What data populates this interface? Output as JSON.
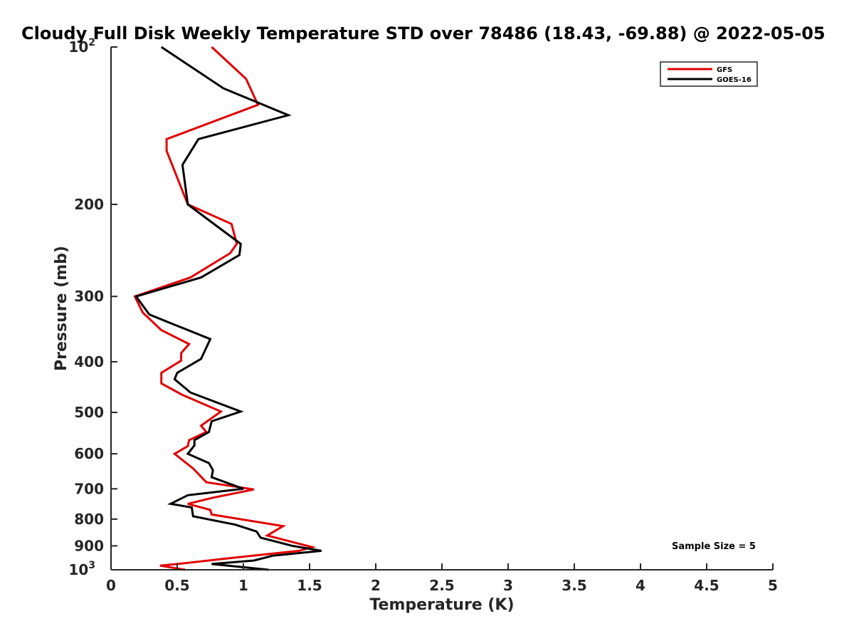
{
  "chart_data": {
    "type": "line",
    "title": "Cloudy Full Disk Weekly Temperature STD over 78486 (18.43, -69.88) @ 2022-05-05",
    "xlabel": "Temperature (K)",
    "ylabel": "Pressure (mb)",
    "xlim": [
      0,
      5
    ],
    "ylim": [
      100,
      1000
    ],
    "y_scale": "log",
    "y_reversed": true,
    "grid": false,
    "legend_position": "top-right",
    "x_ticks": [
      {
        "value": 0,
        "label": "0"
      },
      {
        "value": 0.5,
        "label": "0.5"
      },
      {
        "value": 1,
        "label": "1"
      },
      {
        "value": 1.5,
        "label": "1.5"
      },
      {
        "value": 2,
        "label": "2"
      },
      {
        "value": 2.5,
        "label": "2.5"
      },
      {
        "value": 3,
        "label": "3"
      },
      {
        "value": 3.5,
        "label": "3.5"
      },
      {
        "value": 4,
        "label": "4"
      },
      {
        "value": 4.5,
        "label": "4.5"
      },
      {
        "value": 5,
        "label": "5"
      }
    ],
    "y_ticks": [
      {
        "value": 100,
        "label": "10",
        "sup": "2"
      },
      {
        "value": 200,
        "label": "200"
      },
      {
        "value": 300,
        "label": "300"
      },
      {
        "value": 400,
        "label": "400"
      },
      {
        "value": 500,
        "label": "500"
      },
      {
        "value": 600,
        "label": "600"
      },
      {
        "value": 700,
        "label": "700"
      },
      {
        "value": 800,
        "label": "800"
      },
      {
        "value": 900,
        "label": "900"
      },
      {
        "value": 1000,
        "label": "10",
        "sup": "3"
      }
    ],
    "series": [
      {
        "name": "GFS",
        "color": "#e00000",
        "points": [
          [
            0.76,
            100
          ],
          [
            1.02,
            115
          ],
          [
            1.11,
            129
          ],
          [
            0.42,
            150
          ],
          [
            0.42,
            158
          ],
          [
            0.58,
            200
          ],
          [
            0.91,
            218
          ],
          [
            0.95,
            238
          ],
          [
            0.9,
            248
          ],
          [
            0.6,
            276
          ],
          [
            0.18,
            300
          ],
          [
            0.24,
            322
          ],
          [
            0.38,
            348
          ],
          [
            0.59,
            370
          ],
          [
            0.53,
            385
          ],
          [
            0.53,
            398
          ],
          [
            0.38,
            420
          ],
          [
            0.38,
            440
          ],
          [
            0.54,
            463
          ],
          [
            0.83,
            498
          ],
          [
            0.68,
            530
          ],
          [
            0.72,
            545
          ],
          [
            0.59,
            565
          ],
          [
            0.58,
            580
          ],
          [
            0.48,
            600
          ],
          [
            0.62,
            640
          ],
          [
            0.72,
            680
          ],
          [
            1.08,
            702
          ],
          [
            0.77,
            728
          ],
          [
            0.58,
            748
          ],
          [
            0.75,
            768
          ],
          [
            0.76,
            784
          ],
          [
            1.3,
            825
          ],
          [
            1.18,
            860
          ],
          [
            1.52,
            905
          ],
          [
            1.42,
            920
          ],
          [
            0.9,
            950
          ],
          [
            0.5,
            975
          ],
          [
            0.37,
            982
          ],
          [
            0.56,
            1000
          ]
        ]
      },
      {
        "name": "GOES-16",
        "color": "#000000",
        "points": [
          [
            0.38,
            100
          ],
          [
            0.85,
            120
          ],
          [
            1.34,
            135
          ],
          [
            0.66,
            150
          ],
          [
            0.54,
            168
          ],
          [
            0.58,
            200
          ],
          [
            0.85,
            225
          ],
          [
            0.98,
            238
          ],
          [
            0.97,
            250
          ],
          [
            0.68,
            276
          ],
          [
            0.19,
            300
          ],
          [
            0.29,
            325
          ],
          [
            0.75,
            362
          ],
          [
            0.68,
            395
          ],
          [
            0.5,
            420
          ],
          [
            0.48,
            432
          ],
          [
            0.6,
            458
          ],
          [
            0.98,
            498
          ],
          [
            0.76,
            520
          ],
          [
            0.74,
            545
          ],
          [
            0.63,
            565
          ],
          [
            0.63,
            578
          ],
          [
            0.58,
            600
          ],
          [
            0.74,
            625
          ],
          [
            0.77,
            645
          ],
          [
            0.76,
            665
          ],
          [
            1.0,
            700
          ],
          [
            0.58,
            720
          ],
          [
            0.45,
            748
          ],
          [
            0.61,
            760
          ],
          [
            0.62,
            790
          ],
          [
            0.94,
            820
          ],
          [
            1.1,
            845
          ],
          [
            1.13,
            868
          ],
          [
            1.37,
            900
          ],
          [
            1.59,
            920
          ],
          [
            1.22,
            940
          ],
          [
            1.08,
            960
          ],
          [
            0.76,
            975
          ],
          [
            1.19,
            1000
          ]
        ]
      }
    ],
    "annotations": [
      {
        "text": "Sample Size = 5",
        "position": "bottom-right"
      }
    ]
  }
}
